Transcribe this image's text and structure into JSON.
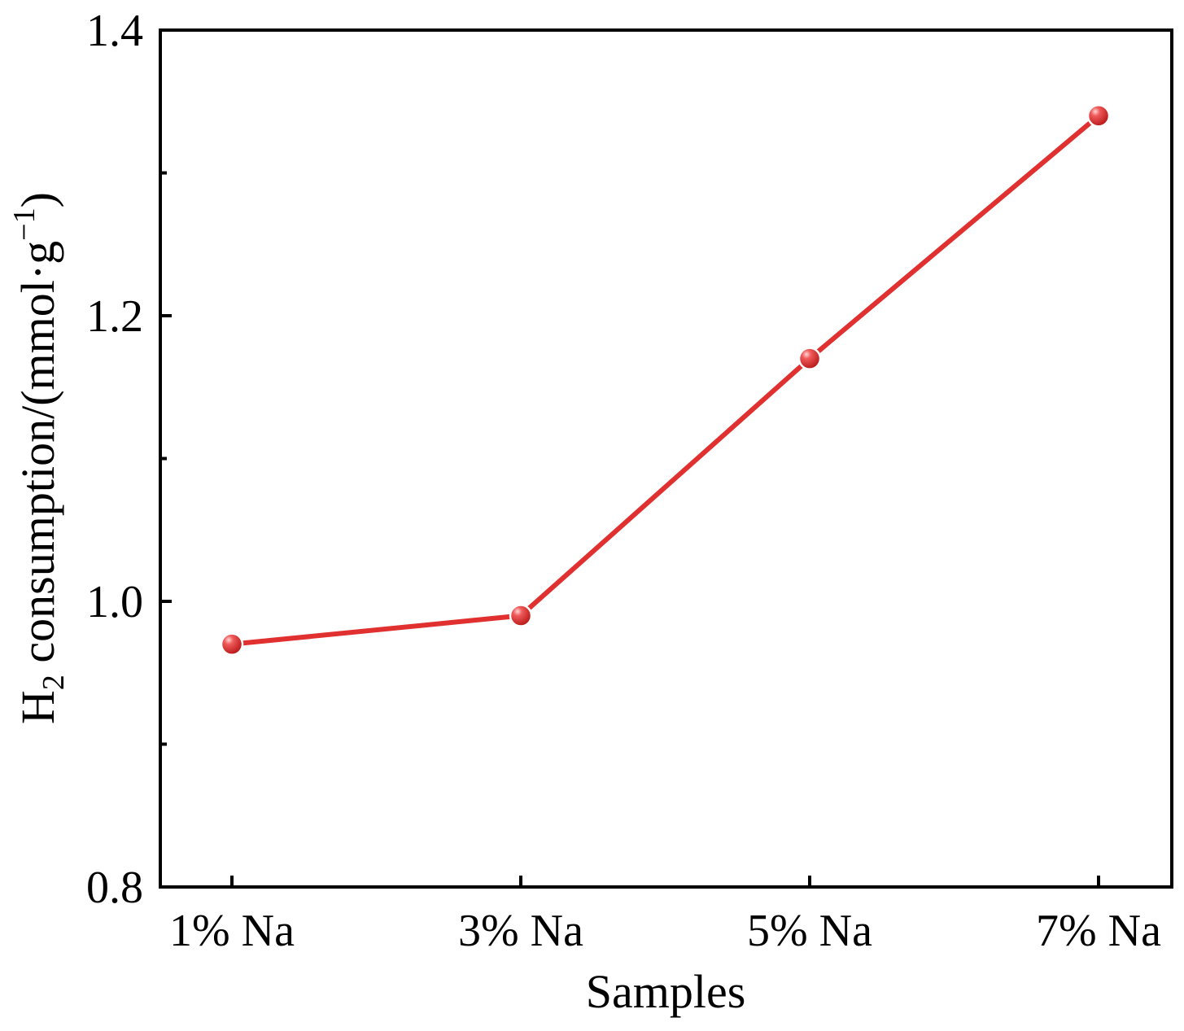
{
  "chart_data": {
    "type": "line",
    "categories": [
      "1% Na",
      "3% Na",
      "5% Na",
      "7% Na"
    ],
    "series": [
      {
        "values": [
          0.97,
          0.99,
          1.17,
          1.34
        ],
        "color": "#e03030"
      }
    ],
    "xlabel": "Samples",
    "ylabel": {
      "main": "H",
      "sub": "2",
      "rest": " consumption/(mmol·g",
      "sup": "−1",
      "close": ")"
    },
    "ylim": [
      0.8,
      1.4
    ],
    "yticks": [
      "0.8",
      "1.0",
      "1.2",
      "1.4"
    ],
    "yticks_values": [
      0.8,
      1.0,
      1.2,
      1.4
    ],
    "yminor_ticks": [
      0.9,
      1.1,
      1.3
    ],
    "grid": false,
    "legend": "none",
    "frame_color": "#000000"
  }
}
